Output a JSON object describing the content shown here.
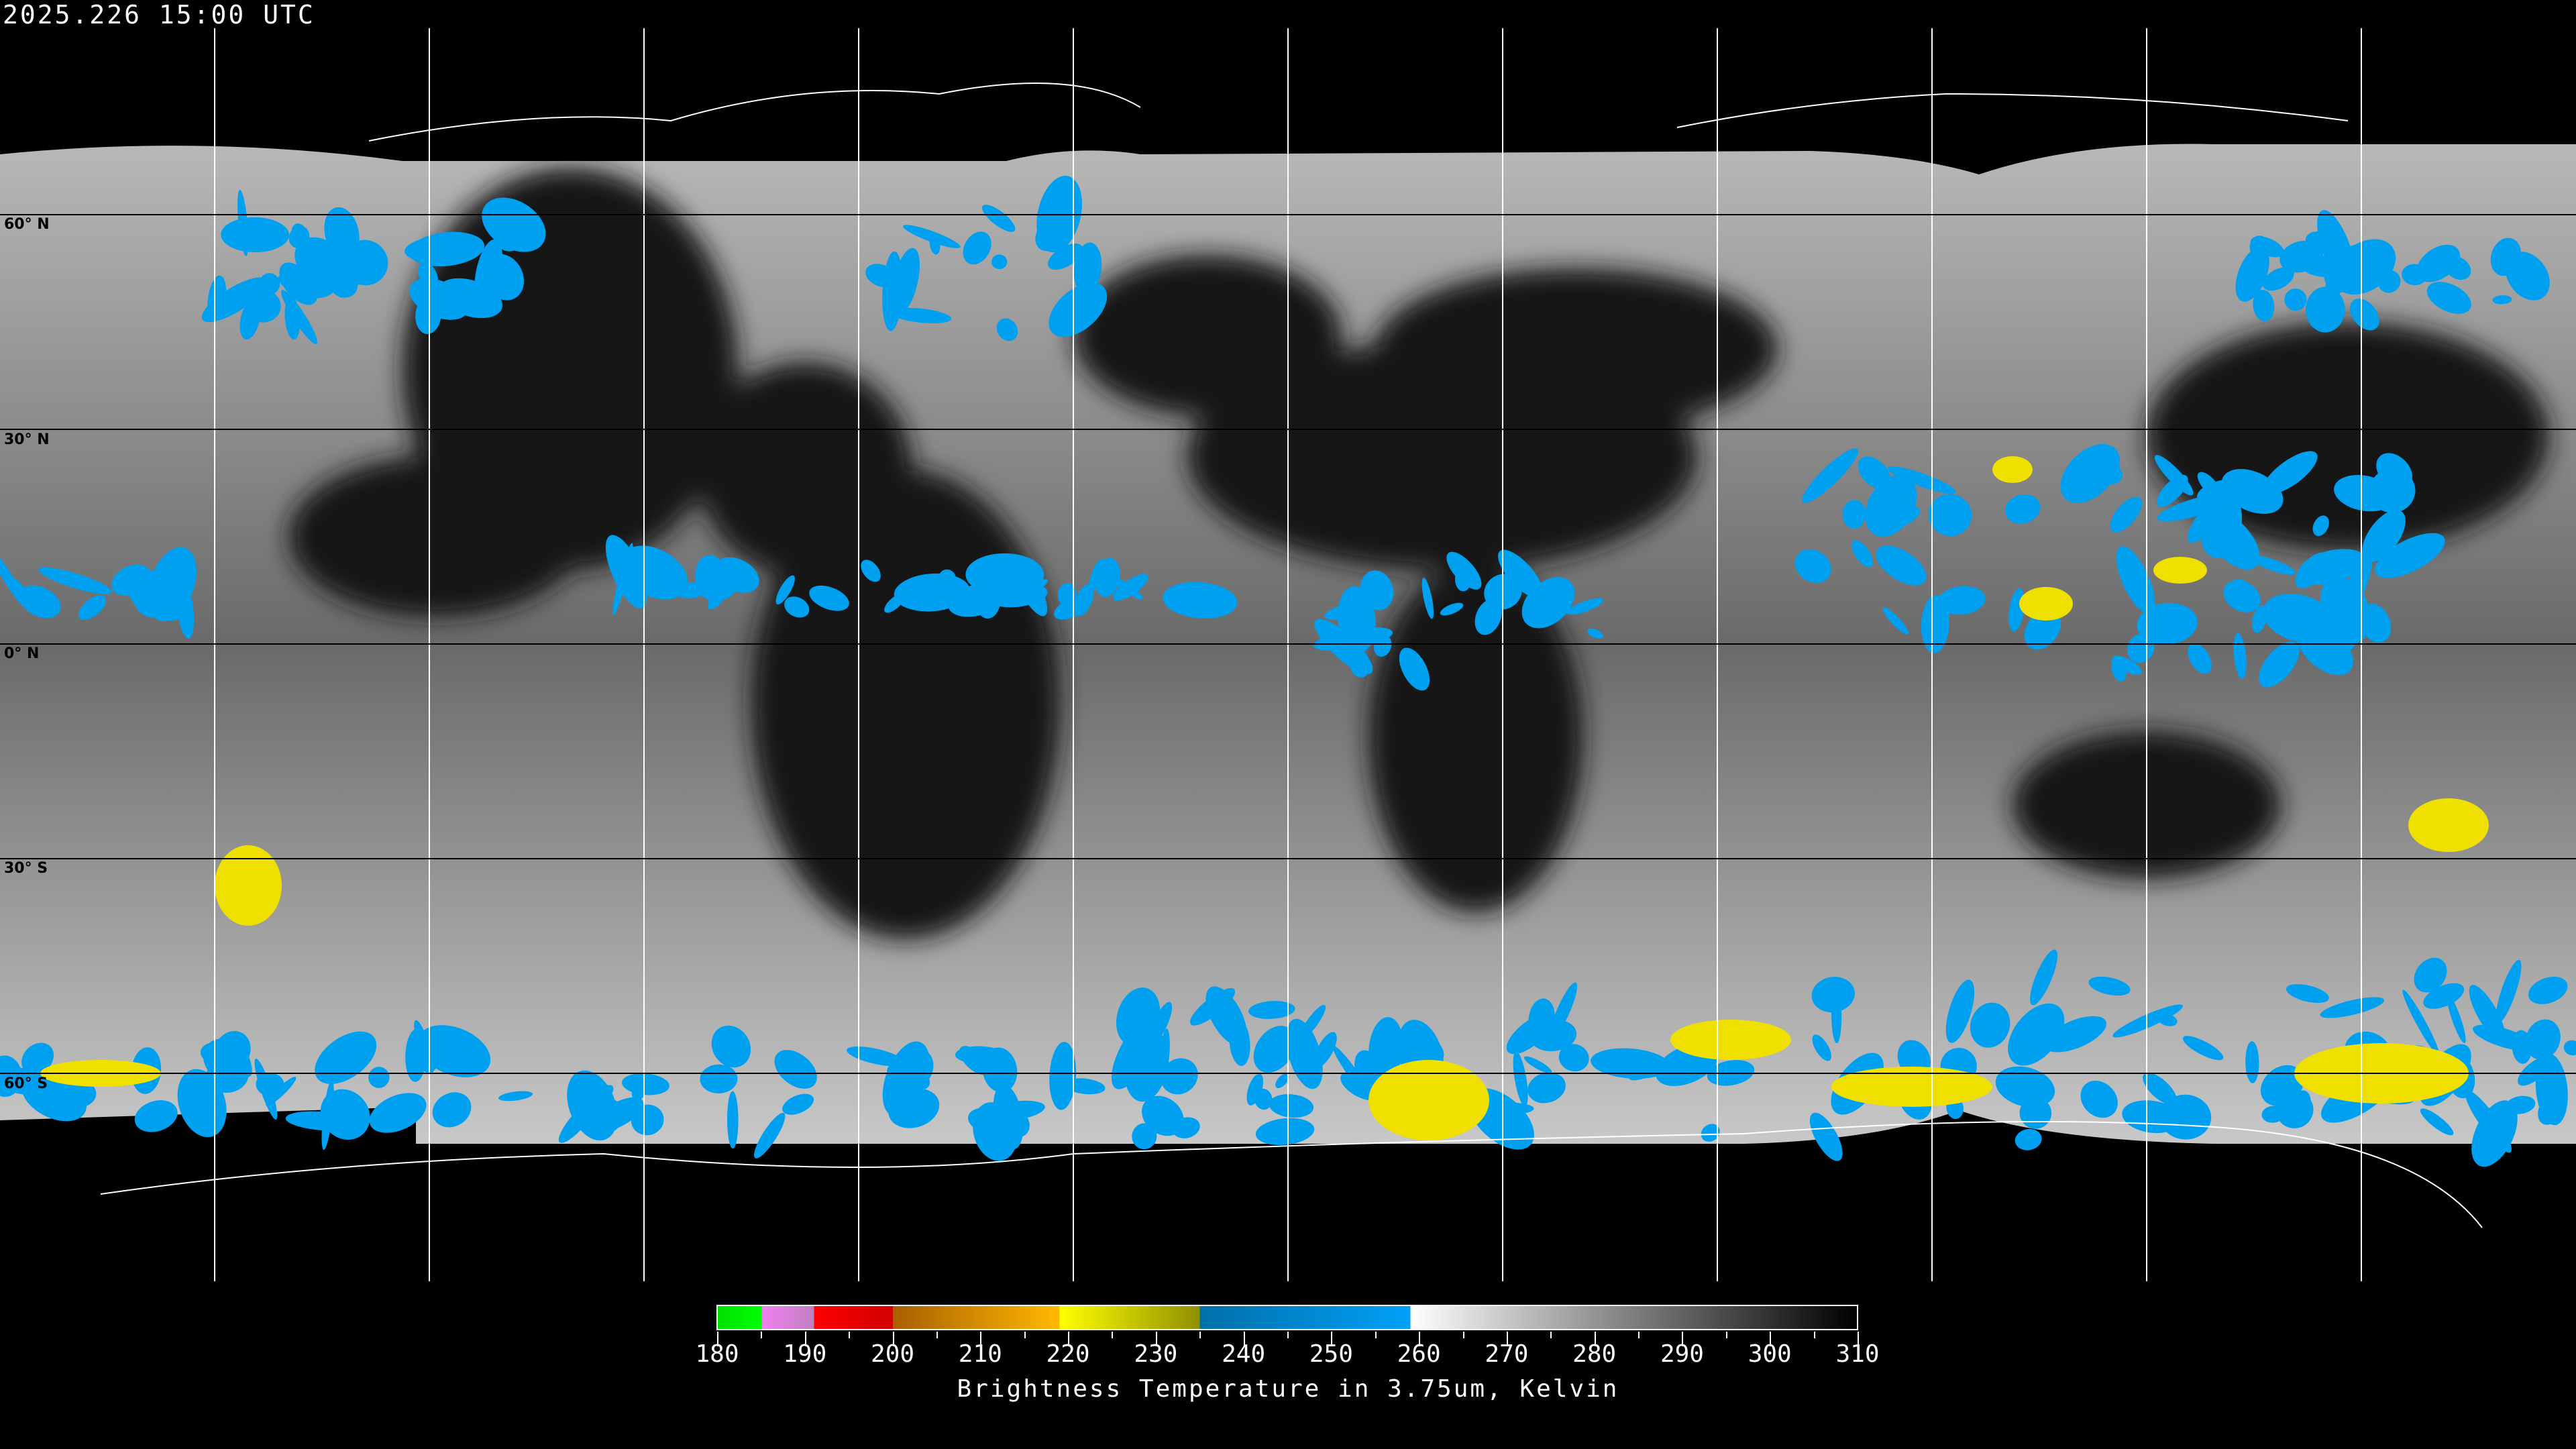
{
  "header": {
    "timestamp": "2025.226 15:00 UTC"
  },
  "map": {
    "projection": "equirectangular",
    "gridlines": true,
    "latitude_labels": [
      "60° N",
      "30° N",
      "0° N",
      "30° S",
      "60° S"
    ],
    "colors": {
      "background": "#000000",
      "gridline": "#ffffff",
      "cold_cloud_blue": "#00a0f0",
      "very_cold_yellow": "#f0e000",
      "coastline": "#ffffff"
    }
  },
  "colorbar": {
    "ticks": [
      "180",
      "190",
      "200",
      "210",
      "220",
      "230",
      "240",
      "250",
      "260",
      "270",
      "280",
      "290",
      "300",
      "310"
    ],
    "range": [
      180,
      310
    ],
    "caption": "Brightness Temperature in 3.75um, Kelvin",
    "segments": [
      {
        "from": 180,
        "to": 185,
        "color": "#00ff00"
      },
      {
        "from": 185,
        "to": 191,
        "color": "#f080f0"
      },
      {
        "from": 191,
        "to": 200,
        "color": "#ff0000"
      },
      {
        "from": 200,
        "to": 219,
        "color": "#ffb800"
      },
      {
        "from": 219,
        "to": 235,
        "color": "#ffff00"
      },
      {
        "from": 235,
        "to": 259,
        "color": "#00a0f8"
      },
      {
        "from": 259,
        "to": 310,
        "color": "#ffffff"
      }
    ]
  }
}
